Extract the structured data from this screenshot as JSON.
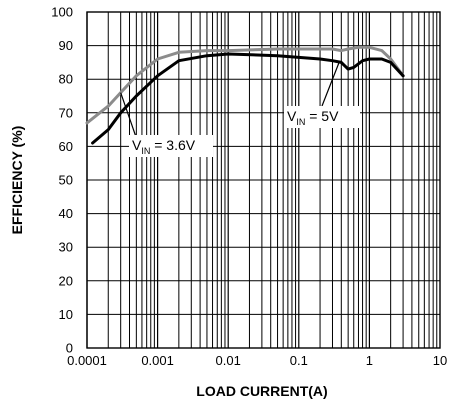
{
  "chart_data": {
    "type": "line",
    "xlabel": "LOAD CURRENT(A)",
    "ylabel": "EFFICIENCY (%)",
    "xscale": "log",
    "xlim": [
      0.0001,
      10
    ],
    "ylim": [
      0,
      100
    ],
    "grid": true,
    "x_ticks": [
      "0.0001",
      "0.001",
      "0.01",
      "0.1",
      "1",
      "10"
    ],
    "y_ticks": [
      "0",
      "10",
      "20",
      "30",
      "40",
      "50",
      "60",
      "70",
      "80",
      "90",
      "100"
    ],
    "series": [
      {
        "name": "VIN = 5V",
        "color": "#8c8c8c",
        "x": [
          0.0001,
          0.0002,
          0.0003,
          0.0005,
          0.001,
          0.002,
          0.005,
          0.01,
          0.05,
          0.1,
          0.2,
          0.3,
          0.4,
          0.5,
          0.7,
          1.0,
          1.5,
          2.0,
          3.0
        ],
        "y": [
          67,
          72,
          76,
          81,
          86,
          88,
          88.5,
          88.5,
          89,
          89,
          89,
          89,
          88.5,
          89,
          89.5,
          89.5,
          88.5,
          86,
          81
        ]
      },
      {
        "name": "VIN = 3.6V",
        "color": "#000000",
        "x": [
          0.00012,
          0.0002,
          0.0003,
          0.0005,
          0.001,
          0.002,
          0.005,
          0.01,
          0.05,
          0.1,
          0.2,
          0.3,
          0.4,
          0.5,
          0.6,
          0.8,
          1.0,
          1.5,
          2.0,
          3.0
        ],
        "y": [
          61,
          65,
          70,
          75,
          81,
          85.5,
          87,
          87.5,
          87,
          86.5,
          86,
          85.5,
          85,
          83,
          83.5,
          85.5,
          86,
          86,
          85,
          81
        ]
      }
    ],
    "annotations": [
      {
        "main": "V",
        "sub": "IN",
        "rest": " = 3.6V"
      },
      {
        "main": "V",
        "sub": "IN",
        "rest": " = 5V"
      }
    ]
  }
}
